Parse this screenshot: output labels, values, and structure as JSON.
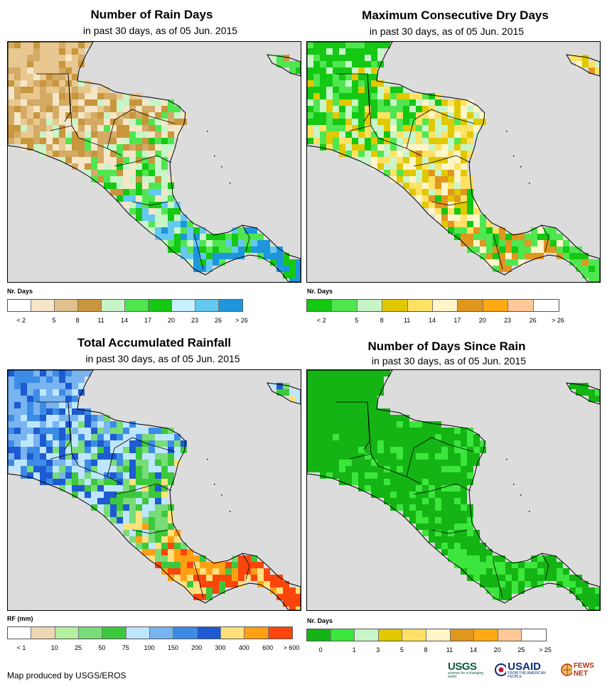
{
  "panels": [
    {
      "title": "Number of Rain Days",
      "subtitle": "in past 30 days, as of 05 Jun. 2015",
      "legend_title": "Nr. Days",
      "legend_colors": [
        "#ffffff",
        "#f5e6c8",
        "#e0c08c",
        "#c8963c",
        "#c8f5c8",
        "#50e650",
        "#14c814",
        "#c8f0ff",
        "#64c8f0",
        "#1e96dc"
      ],
      "legend_ticks": [
        "< 2",
        "5",
        "8",
        "11",
        "14",
        "17",
        "20",
        "23",
        "26",
        "> 26"
      ],
      "palette": [
        "#e8c890",
        "#d4aa64",
        "#c8963c",
        "#f5e6c8",
        "#c8f5c8",
        "#50e650",
        "#14c814",
        "#64c8f0",
        "#1e96dc"
      ]
    },
    {
      "title": "Maximum Consecutive Dry Days",
      "subtitle": "in past 30 days, as of 05 Jun. 2015",
      "legend_title": "Nr. Days",
      "legend_colors": [
        "#14c814",
        "#50e650",
        "#c8f5c8",
        "#e1c800",
        "#ffe164",
        "#fff5c8",
        "#e1961e",
        "#ffaa14",
        "#ffc896",
        "#ffffff"
      ],
      "legend_ticks": [
        "< 2",
        "5",
        "8",
        "11",
        "14",
        "17",
        "20",
        "23",
        "26",
        "> 26"
      ],
      "palette": [
        "#14c814",
        "#50e650",
        "#c8f5c8",
        "#e1c800",
        "#ffe164",
        "#fff5c8",
        "#e1961e",
        "#14c814",
        "#50e650"
      ]
    },
    {
      "title": "Total Accumulated Rainfall",
      "subtitle": "in past 30 days, as of 05 Jun. 2015",
      "legend_title": "RF (mm)",
      "legend_colors": [
        "#ffffff",
        "#f0d7b4",
        "#b4f0a0",
        "#78dc78",
        "#3cc83c",
        "#bee6ff",
        "#78b4f0",
        "#3c8ce6",
        "#1e5ad2",
        "#ffe17d",
        "#ffa014",
        "#fa460a"
      ],
      "legend_ticks": [
        "< 1",
        "10",
        "25",
        "50",
        "75",
        "100",
        "150",
        "200",
        "300",
        "400",
        "600",
        "> 600"
      ],
      "palette": [
        "#78b4f0",
        "#3c8ce6",
        "#1e5ad2",
        "#bee6ff",
        "#78dc78",
        "#3cc83c",
        "#ffe17d",
        "#ffa014",
        "#fa460a"
      ]
    },
    {
      "title": "Number of Days Since Rain",
      "subtitle": "in past 30 days, as of 05 Jun. 2015",
      "legend_title": "Nr. Days",
      "legend_colors": [
        "#14b414",
        "#3ce63c",
        "#c8f5c8",
        "#e1c800",
        "#ffe164",
        "#fff5c8",
        "#e1961e",
        "#ffaa14",
        "#ffc896",
        "#ffffff"
      ],
      "legend_ticks": [
        "0",
        "1",
        "3",
        "5",
        "8",
        "11",
        "14",
        "20",
        "25",
        "> 25"
      ],
      "palette": [
        "#14b414",
        "#14b414",
        "#14b414",
        "#14b414",
        "#3ce63c",
        "#14b414",
        "#14b414",
        "#3ce63c",
        "#14b414"
      ]
    }
  ],
  "credit": "Map produced by USGS/EROS",
  "logos": {
    "usgs": "USGS",
    "usgs_tag": "science for a changing world",
    "usaid": "USAID",
    "usaid_tag": "FROM THE AMERICAN PEOPLE",
    "fews": "FEWS NET"
  }
}
